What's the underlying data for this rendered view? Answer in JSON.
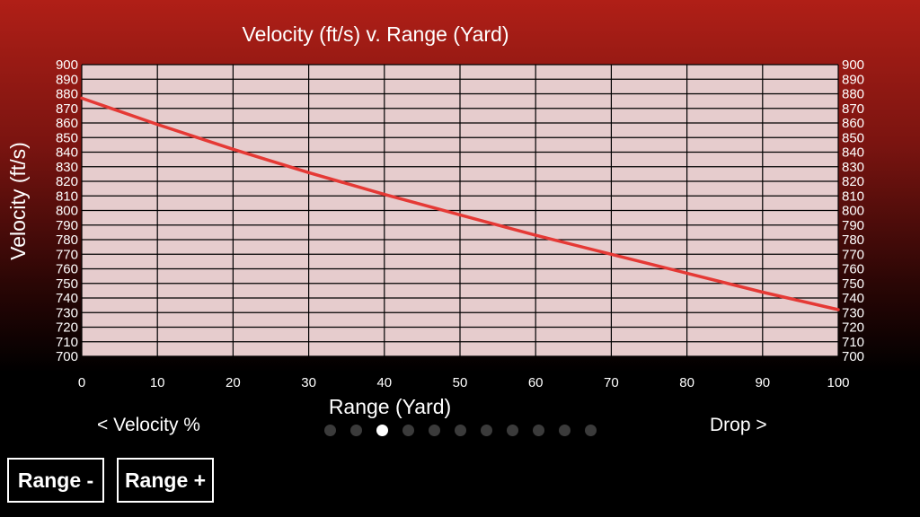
{
  "chart_data": {
    "type": "line",
    "title": "Velocity (ft/s) v. Range (Yard)",
    "xlabel": "Range (Yard)",
    "ylabel": "Velocity (ft/s)",
    "xlim": [
      0,
      100
    ],
    "ylim": [
      700,
      900
    ],
    "x_ticks": [
      0,
      10,
      20,
      30,
      40,
      50,
      60,
      70,
      80,
      90,
      100
    ],
    "y_ticks": [
      700,
      710,
      720,
      730,
      740,
      750,
      760,
      770,
      780,
      790,
      800,
      810,
      820,
      830,
      840,
      850,
      860,
      870,
      880,
      890,
      900
    ],
    "right_axis_ticks": true,
    "grid": true,
    "series": [
      {
        "x": [
          0,
          10,
          20,
          30,
          40,
          50,
          60,
          70,
          80,
          90,
          100
        ],
        "y": [
          877,
          859,
          842,
          826,
          811,
          797,
          783,
          770,
          757,
          744,
          732
        ],
        "color": "#e53935"
      }
    ]
  },
  "navigation": {
    "prev_label": "< Velocity %",
    "next_label": "Drop >",
    "page_count": 11,
    "active_page": 3
  },
  "controls": {
    "range_minus_label": "Range -",
    "range_plus_label": "Range +"
  },
  "colors": {
    "plot_background": "#e6cccd",
    "grid": "#000000",
    "line": "#e53935",
    "dot_inactive": "#3b3b3b",
    "dot_active": "#ffffff"
  }
}
